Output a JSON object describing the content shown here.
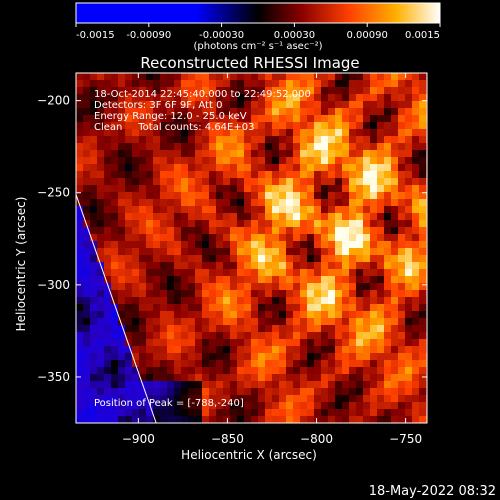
{
  "colorbar": {
    "ticks": [
      "-0.0015",
      "-0.00090",
      "-0.00030",
      "0.00030",
      "0.00090",
      "0.0015"
    ],
    "tick_values": [
      -0.0015,
      -0.0009,
      -0.0003,
      0.0003,
      0.0009,
      0.0015
    ],
    "range": [
      -0.0015,
      0.0015
    ],
    "unit_label": "(photons cm⁻² s⁻¹ asec⁻²)",
    "colors": [
      "#0000ff",
      "#000000",
      "#8a0000",
      "#ff4000",
      "#ffb000",
      "#ffffff"
    ]
  },
  "chart_data": {
    "type": "heatmap",
    "title": "Reconstructed RHESSI Image",
    "xlabel": "Heliocentric X (arcsec)",
    "ylabel": "Heliocentric Y (arcsec)",
    "xlim": [
      -935,
      -738
    ],
    "ylim": [
      -375,
      -185
    ],
    "x_ticks": [
      -900,
      -850,
      -800,
      -750
    ],
    "y_ticks": [
      -200,
      -250,
      -300,
      -350
    ],
    "x_tick_labels": [
      "−900",
      "−850",
      "−800",
      "−750"
    ],
    "y_tick_labels": [
      "−200",
      "−250",
      "−300",
      "−350"
    ],
    "annotations": [
      "18-Oct-2014 22:45:40.000 to 22:49:52.000",
      "Detectors: 3F 6F 9F, Att 0",
      "Energy Range: 12.0 - 25.0 keV",
      "Clean     Total counts: 4.64E+03"
    ],
    "peak_label": "Position of Peak = [-788,-240]",
    "peak": [
      -788,
      -240
    ],
    "limb_line": [
      [
        -935,
        -251
      ],
      [
        -890,
        -375
      ]
    ]
  },
  "footer": {
    "timestamp": "18-May-2022 08:32"
  }
}
